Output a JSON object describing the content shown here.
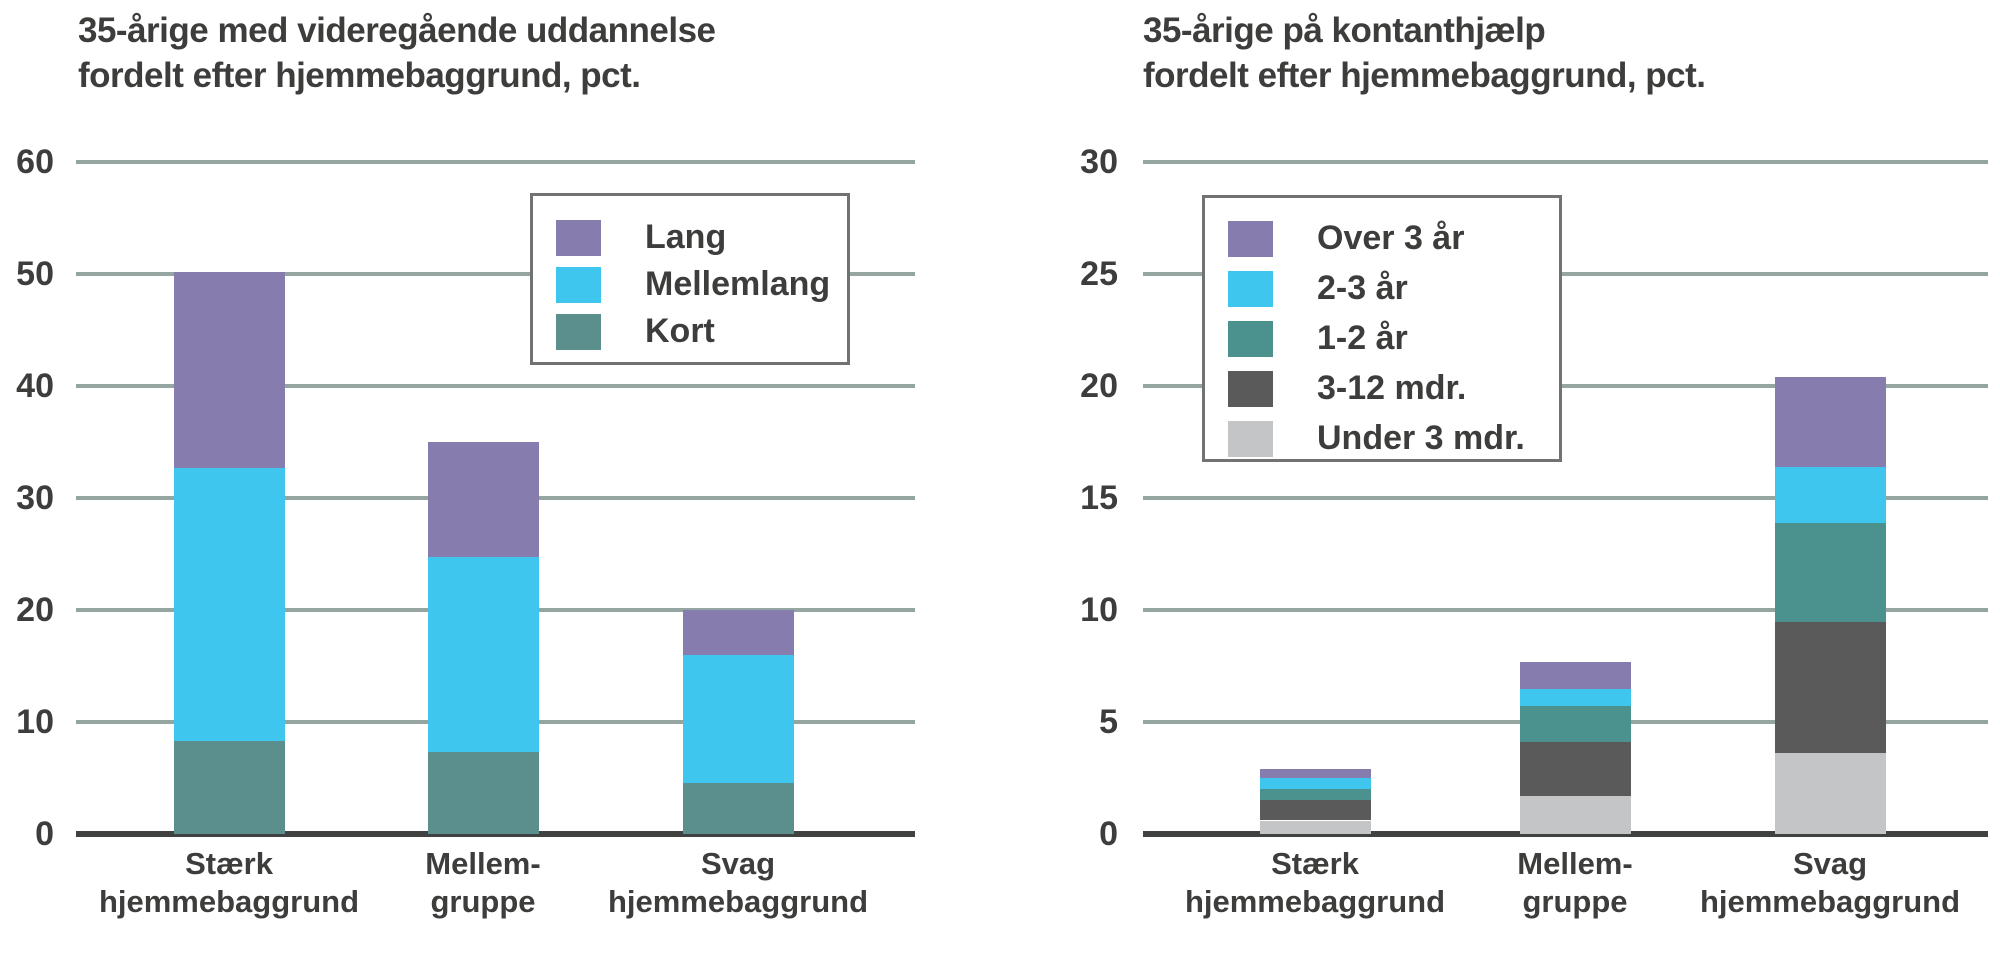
{
  "styles": {
    "background": "#ffffff",
    "text_color": "#3d3d3c",
    "gridline_color": "#94a5a2",
    "axis_color": "#404241",
    "legend_border_color": "#707372",
    "legend_background": "#ffffff"
  },
  "chart_data": [
    {
      "type": "bar",
      "stacked": true,
      "title_line1": "35-årige med videregående uddannelse",
      "title_line2": "fordelt efter hjemmebaggrund, pct.",
      "xlabel": "",
      "ylabel": "pct.",
      "ylim": [
        0,
        60
      ],
      "yticks": [
        0,
        10,
        20,
        30,
        40,
        50,
        60
      ],
      "grid": true,
      "legend_position": "upper-right-inside",
      "categories": [
        [
          "Stærk",
          "hjemmebaggrund"
        ],
        [
          "Mellem-",
          "gruppe"
        ],
        [
          "Svag",
          "hjemmebaggrund"
        ]
      ],
      "series": [
        {
          "name": "Kort",
          "color": "#5b8f8e",
          "values": [
            8.3,
            7.3,
            4.6
          ]
        },
        {
          "name": "Mellemlang",
          "color": "#3ec6ef",
          "values": [
            24.4,
            17.4,
            11.4
          ]
        },
        {
          "name": "Lang",
          "color": "#877cae",
          "values": [
            17.5,
            10.3,
            4.0
          ]
        }
      ],
      "totals": [
        50.2,
        35.0,
        20.0
      ],
      "legend_order": [
        "Lang",
        "Mellemlang",
        "Kort"
      ]
    },
    {
      "type": "bar",
      "stacked": true,
      "title_line1": "35-årige på kontanthjælp",
      "title_line2": "fordelt efter hjemmebaggrund, pct.",
      "xlabel": "",
      "ylabel": "pct.",
      "ylim": [
        0,
        30
      ],
      "yticks": [
        0,
        5,
        10,
        15,
        20,
        25,
        30
      ],
      "grid": true,
      "legend_position": "upper-left-inside",
      "categories": [
        [
          "Stærk",
          "hjemmebaggrund"
        ],
        [
          "Mellem-",
          "gruppe"
        ],
        [
          "Svag",
          "hjemmebaggrund"
        ]
      ],
      "series": [
        {
          "name": "Under 3 mdr.",
          "color": "#c3c5c7",
          "values": [
            0.6,
            1.7,
            3.6
          ]
        },
        {
          "name": "3-12 mdr.",
          "color": "#5a5a5a",
          "values": [
            0.9,
            2.4,
            5.9
          ]
        },
        {
          "name": "1-2 år",
          "color": "#4b918e",
          "values": [
            0.5,
            1.6,
            4.4
          ]
        },
        {
          "name": "2-3 år",
          "color": "#3ec6ef",
          "values": [
            0.5,
            0.8,
            2.5
          ]
        },
        {
          "name": "Over 3 år",
          "color": "#877cae",
          "values": [
            0.4,
            1.2,
            4.0
          ]
        }
      ],
      "totals": [
        2.9,
        7.7,
        20.4
      ],
      "legend_order": [
        "Over 3 år",
        "2-3 år",
        "1-2 år",
        "3-12 mdr.",
        "Under 3 mdr."
      ]
    }
  ]
}
